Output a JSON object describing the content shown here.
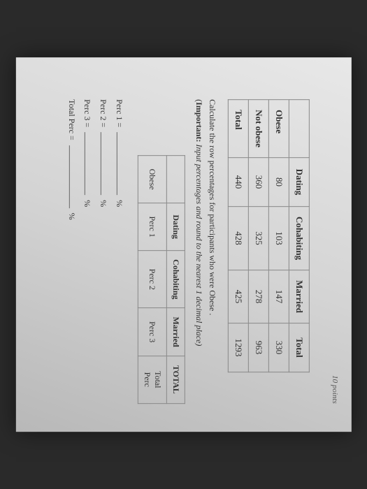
{
  "points_label": "10 points",
  "table1": {
    "headers": [
      "",
      "Dating",
      "Cohabiting",
      "Married",
      "Total"
    ],
    "rows": [
      [
        "Obese",
        "80",
        "103",
        "147",
        "330"
      ],
      [
        "Not obese",
        "360",
        "325",
        "278",
        "963"
      ],
      [
        "Total",
        "440",
        "428",
        "425",
        "1293"
      ]
    ]
  },
  "instruction_line": "Calculate the row percentages for participants who were Obese .",
  "important_label": "Important:",
  "important_text": " Input percentages and round to the nearest 1 decimal place)",
  "table2": {
    "headers": [
      "",
      "Dating",
      "Cohabiting",
      "Married",
      "TOTAL"
    ],
    "row": [
      "Obese",
      "Perc 1",
      "Perc 2",
      "Perc 3",
      "Total Perc"
    ]
  },
  "answers": {
    "perc1_label": "Perc 1 =",
    "perc2_label": "Perc 2 =",
    "perc3_label": "Perc 3 =",
    "total_label": "Total Perc =",
    "unit": "%"
  }
}
